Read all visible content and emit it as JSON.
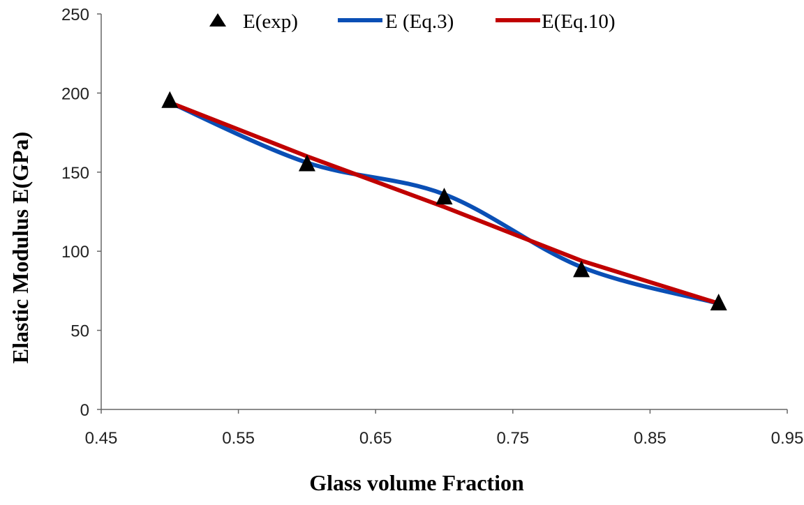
{
  "chart_data": {
    "type": "line",
    "title": "",
    "xlabel": "Glass volume Fraction",
    "ylabel": "Elastic Modulus E(GPa)",
    "xlim": [
      0.45,
      0.95
    ],
    "ylim": [
      0,
      250
    ],
    "x_ticks": [
      "0.45",
      "0.55",
      "0.65",
      "0.75",
      "0.85",
      "0.95"
    ],
    "y_ticks": [
      "0",
      "50",
      "100",
      "150",
      "200",
      "250"
    ],
    "grid": false,
    "legend_position": "top",
    "x": [
      0.5,
      0.6,
      0.7,
      0.8,
      0.9
    ],
    "series": [
      {
        "name": "E(exp)",
        "style": "marker-triangle",
        "color": "#000000",
        "values": [
          195,
          155,
          134,
          88,
          67
        ]
      },
      {
        "name": "E (Eq.3)",
        "style": "smooth-line",
        "color": "#0a4fb5",
        "values": [
          194,
          156,
          136,
          90,
          67
        ]
      },
      {
        "name": "E(Eq.10)",
        "style": "line",
        "color": "#c00000",
        "values": [
          194,
          160,
          128,
          94,
          67
        ]
      }
    ]
  }
}
